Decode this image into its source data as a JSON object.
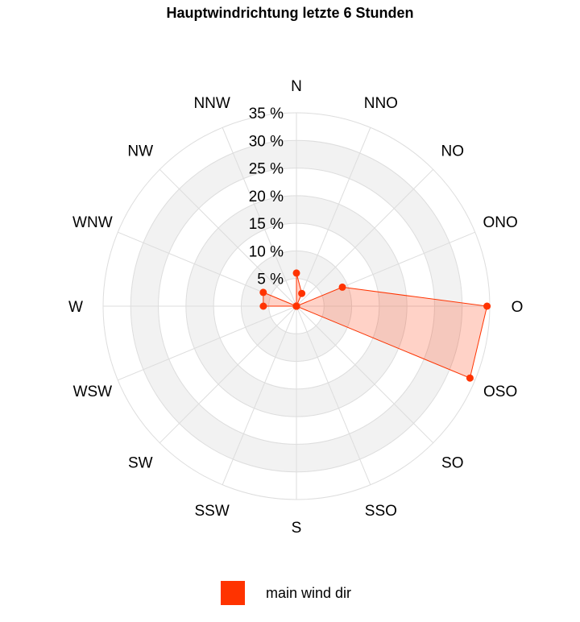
{
  "chart_data": {
    "type": "radar",
    "title": "Hauptwindrichtung letzte 6 Stunden",
    "categories": [
      "N",
      "NNO",
      "NO",
      "ONO",
      "O",
      "OSO",
      "SO",
      "SSO",
      "S",
      "SSW",
      "SW",
      "WSW",
      "W",
      "WNW",
      "NW",
      "NNW"
    ],
    "radial_ticks": [
      "5 %",
      "10 %",
      "15 %",
      "20 %",
      "25 %",
      "30 %",
      "35 %"
    ],
    "radial_range": [
      0,
      35
    ],
    "series": [
      {
        "name": "main wind dir",
        "values": [
          6,
          2.5,
          0,
          9,
          34.5,
          34,
          0,
          0,
          0,
          0,
          0,
          0,
          6,
          6.5,
          0,
          0
        ]
      }
    ],
    "legend_position": "bottom",
    "colors": {
      "series_line": "#ff3300",
      "series_fill": "#ff3300",
      "band": "#f2f2f2",
      "grid": "#dddddd"
    }
  }
}
